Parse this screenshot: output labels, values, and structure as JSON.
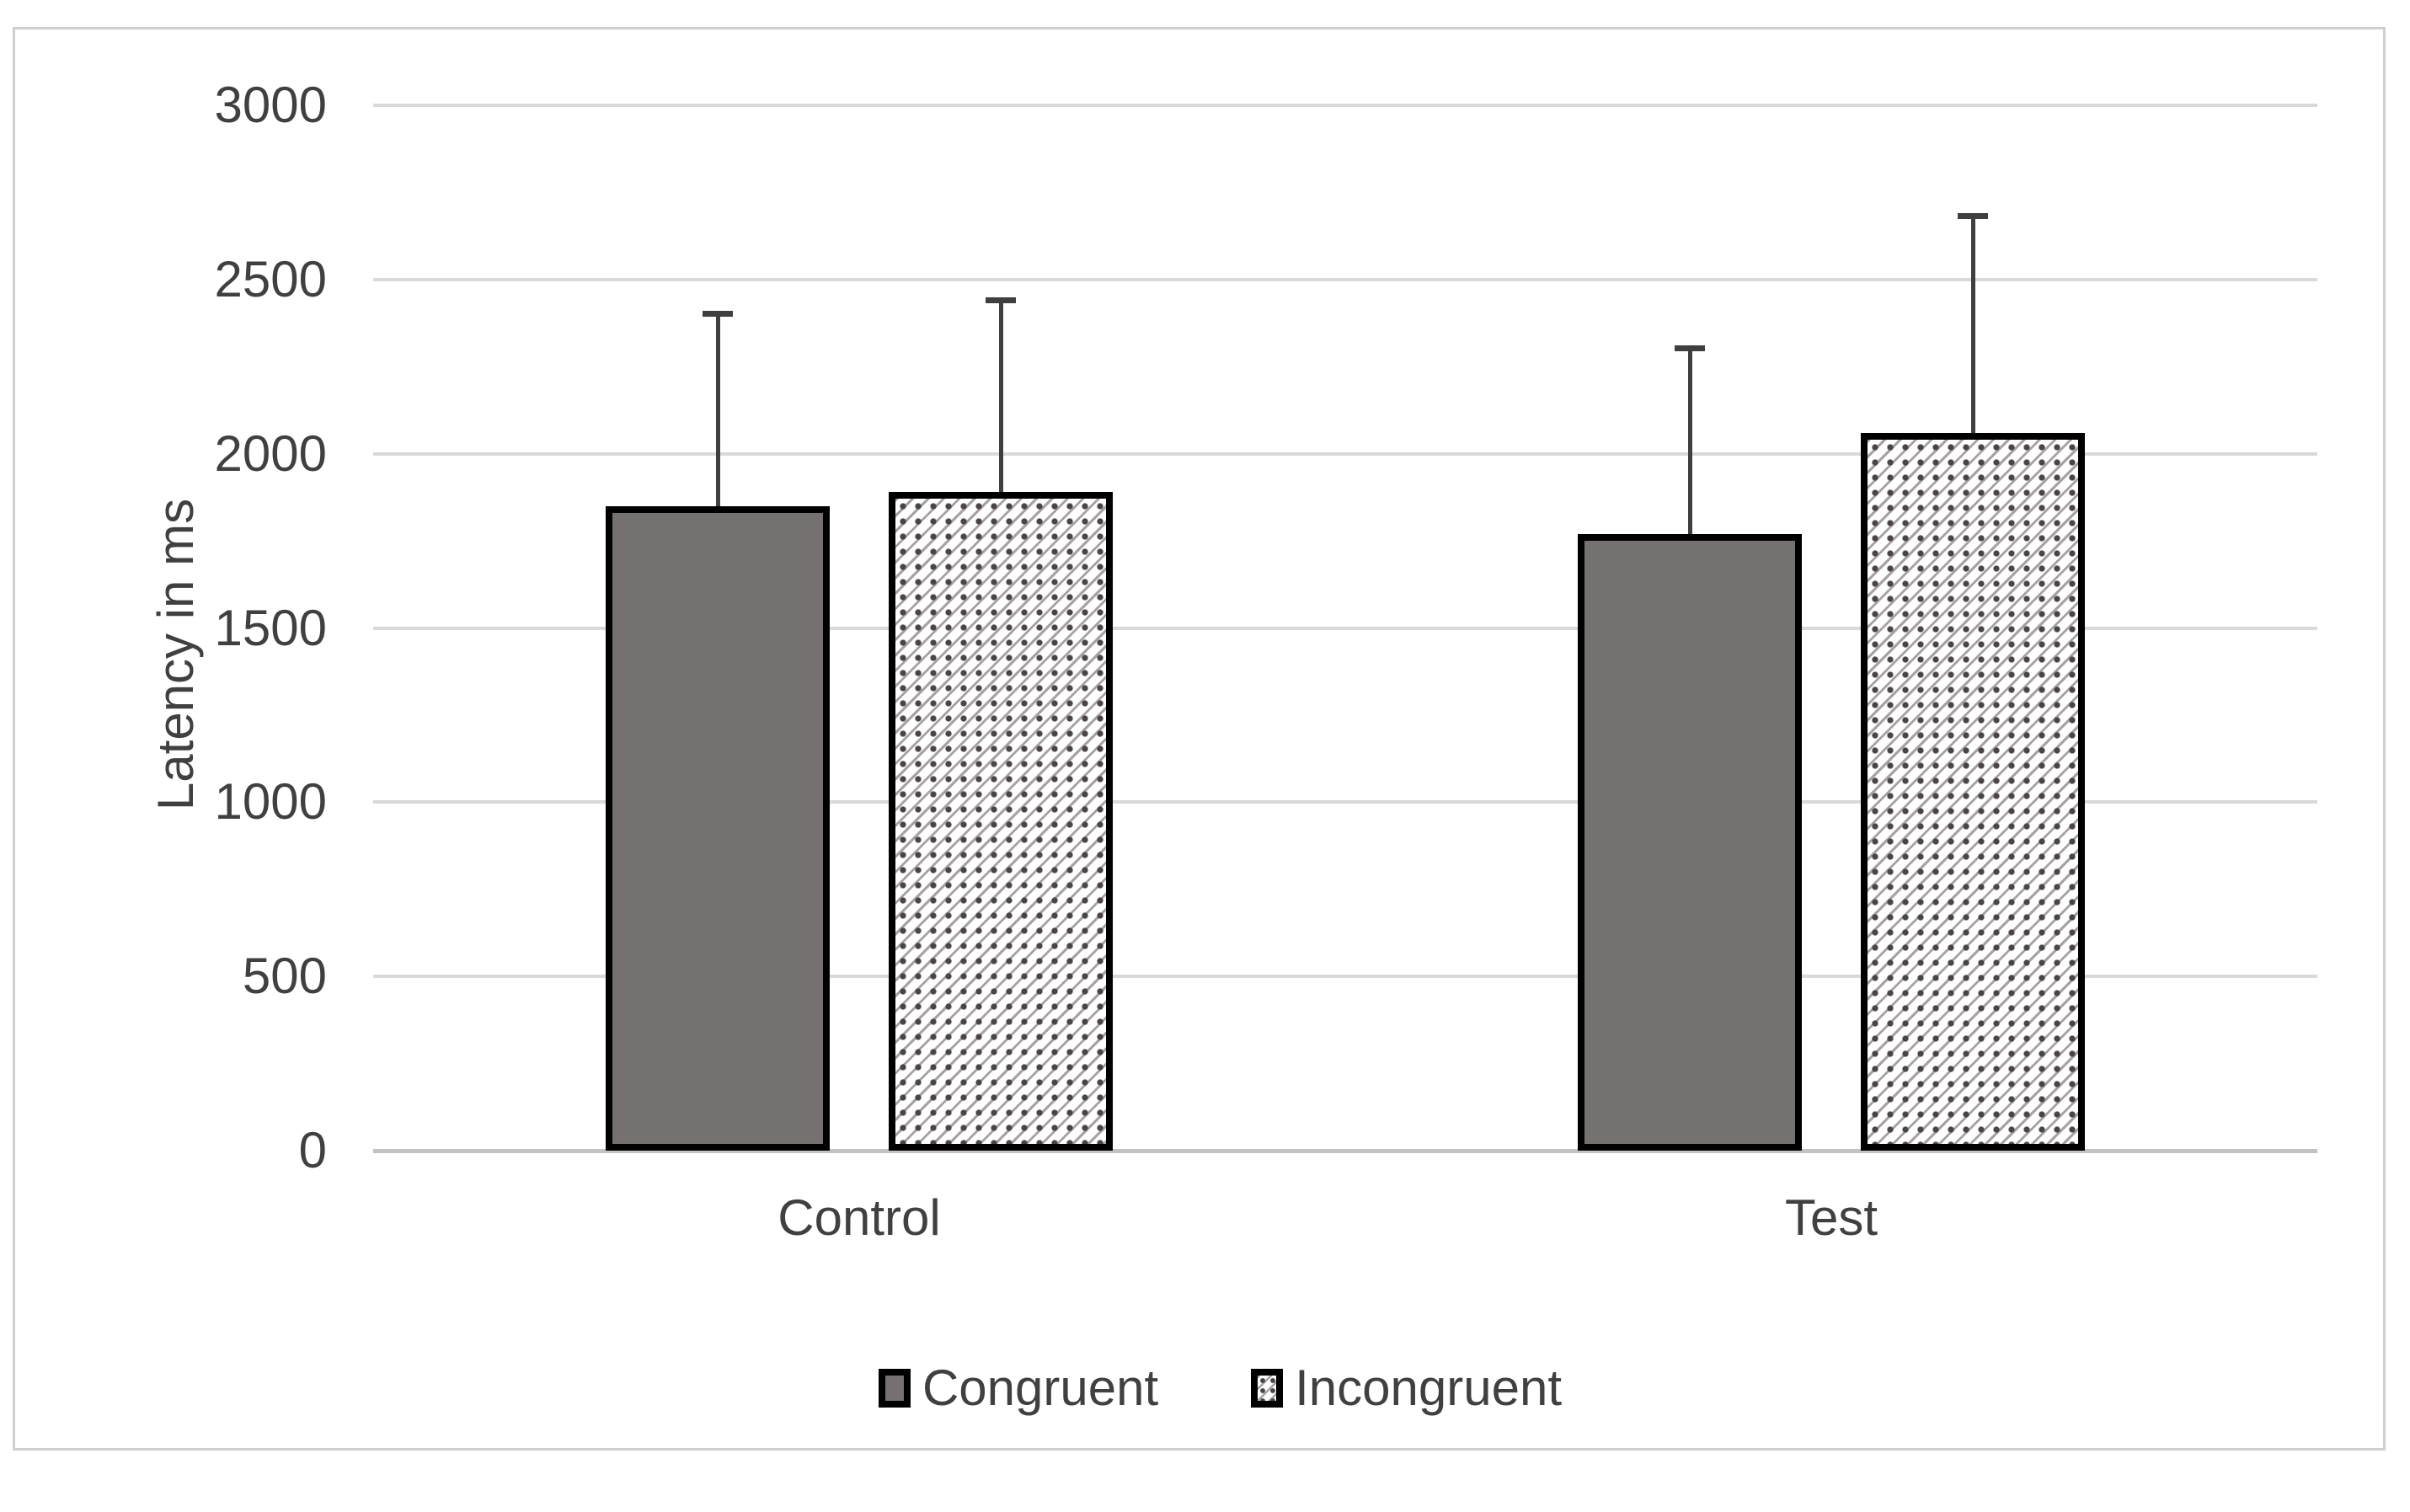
{
  "chart_data": {
    "type": "bar",
    "title": "",
    "categories": [
      "Control",
      "Test"
    ],
    "series": [
      {
        "name": "Congruent",
        "values": [
          1850,
          1770
        ],
        "error_upper": [
          560,
          540
        ],
        "error_tops": [
          2410,
          2310
        ],
        "fill": "solid-gray"
      },
      {
        "name": "Incongruent",
        "values": [
          1890,
          2060
        ],
        "error_upper": [
          560,
          630
        ],
        "error_tops": [
          2450,
          2690
        ],
        "fill": "diagonal-hatch"
      }
    ],
    "xlabel": "",
    "ylabel": "Latency in ms",
    "ylim": [
      0,
      3000
    ],
    "ytick_step": 500,
    "yticks": [
      "0",
      "500",
      "1000",
      "1500",
      "2000",
      "2500",
      "3000"
    ],
    "grid": "horizontal",
    "legend_position": "bottom",
    "colors": {
      "bar_gray": "#767171",
      "bar_border": "#000000",
      "gridline": "#d9d9d9",
      "axis_line": "#c3c3c3",
      "text": "#404040",
      "error_bar": "#3f3f3f",
      "frame_border": "#cfcfcf",
      "hatch_line": "#a8a2a2",
      "hatch_dot": "#4a4444"
    }
  }
}
